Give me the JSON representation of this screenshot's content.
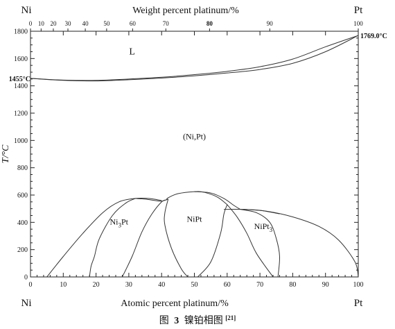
{
  "chart_data": {
    "type": "line",
    "top_axis": {
      "label": "Weight percent platinum/%",
      "ticks": [
        {
          "label": "0",
          "at": 0
        },
        {
          "label": "10",
          "at": 3.24
        },
        {
          "label": "20",
          "at": 6.97
        },
        {
          "label": "30",
          "at": 11.42
        },
        {
          "label": "40",
          "at": 16.72
        },
        {
          "label": "50",
          "at": 23.23
        },
        {
          "label": "60",
          "at": 31.15
        },
        {
          "label": "70",
          "at": 41.29
        },
        {
          "label": "80",
          "at": 54.63
        },
        {
          "label": "90",
          "at": 73.0
        },
        {
          "label": "100",
          "at": 100
        }
      ]
    },
    "xlabel": "Atomic percent platinum/%",
    "ylabel": "T/°C",
    "xlim": [
      0,
      100
    ],
    "ylim": [
      0,
      1800
    ],
    "x_ticks": [
      "0",
      "10",
      "20",
      "30",
      "40",
      "50",
      "60",
      "70",
      "80",
      "90",
      "100"
    ],
    "y_ticks": [
      "0",
      "200",
      "400",
      "600",
      "800",
      "1000",
      "1200",
      "1400",
      "1600",
      "1800"
    ],
    "corner_labels": {
      "left_top": "Ni",
      "right_top": "Pt",
      "left_bottom": "Ni",
      "right_bottom": "Pt"
    },
    "annotations": {
      "ni_melt": {
        "text": "1455°C",
        "x": 0,
        "y": 1455
      },
      "pt_melt": {
        "text": "1769.0°C",
        "x": 100,
        "y": 1769
      }
    },
    "phase_labels": [
      {
        "text": "L",
        "x": 31,
        "y": 1630
      },
      {
        "text": "(Ni,Pt)",
        "x": 50,
        "y": 1010
      },
      {
        "text": "NiPt",
        "x": 50,
        "y": 405
      }
    ],
    "subscript_labels": [
      {
        "base1": "Ni",
        "sub": "3",
        "base2": "Pt",
        "x": 27,
        "y": 385
      },
      {
        "base1": "NiPt",
        "sub": "3",
        "base2": "",
        "x": 71,
        "y": 350
      }
    ],
    "series": [
      {
        "values": [
          [
            0,
            1455
          ],
          [
            10,
            1440
          ],
          [
            20,
            1436
          ],
          [
            30,
            1445
          ],
          [
            40,
            1457
          ],
          [
            50,
            1473
          ],
          [
            60,
            1494
          ],
          [
            70,
            1520
          ],
          [
            80,
            1565
          ],
          [
            90,
            1650
          ],
          [
            100,
            1769
          ]
        ]
      },
      {
        "values": [
          [
            0,
            1455
          ],
          [
            10,
            1442
          ],
          [
            20,
            1440
          ],
          [
            30,
            1450
          ],
          [
            40,
            1463
          ],
          [
            50,
            1482
          ],
          [
            60,
            1506
          ],
          [
            70,
            1540
          ],
          [
            80,
            1596
          ],
          [
            90,
            1686
          ],
          [
            100,
            1769
          ]
        ]
      },
      {
        "values": [
          [
            5,
            0
          ],
          [
            10,
            150
          ],
          [
            16,
            320
          ],
          [
            22,
            470
          ],
          [
            27,
            550
          ],
          [
            32,
            575
          ],
          [
            36,
            575
          ],
          [
            40,
            560
          ]
        ]
      },
      {
        "values": [
          [
            18,
            0
          ],
          [
            18.5,
            80
          ],
          [
            19.5,
            150
          ],
          [
            21,
            280
          ],
          [
            25,
            450
          ],
          [
            29,
            540
          ],
          [
            32,
            575
          ]
        ]
      },
      {
        "values": [
          [
            28,
            0
          ],
          [
            31,
            150
          ],
          [
            34,
            330
          ],
          [
            37,
            460
          ],
          [
            40,
            550
          ],
          [
            41.5,
            565
          ]
        ]
      },
      {
        "values": [
          [
            32,
            575
          ],
          [
            35,
            570
          ],
          [
            38,
            560
          ],
          [
            40,
            555
          ],
          [
            42,
            570
          ]
        ]
      },
      {
        "values": [
          [
            41.5,
            565
          ],
          [
            42,
            580
          ],
          [
            45,
            610
          ],
          [
            50,
            625
          ],
          [
            53,
            620
          ],
          [
            57,
            585
          ],
          [
            60,
            530
          ]
        ]
      },
      {
        "values": [
          [
            48,
            0
          ],
          [
            46,
            60
          ],
          [
            43,
            210
          ],
          [
            41,
            380
          ],
          [
            41,
            470
          ],
          [
            42,
            570
          ]
        ]
      },
      {
        "values": [
          [
            51,
            0
          ],
          [
            55,
            110
          ],
          [
            58,
            320
          ],
          [
            59,
            460
          ],
          [
            60,
            530
          ]
        ]
      },
      {
        "values": [
          [
            50,
            625
          ],
          [
            55,
            615
          ],
          [
            59,
            575
          ],
          [
            62,
            525
          ],
          [
            64,
            495
          ]
        ]
      },
      {
        "values": [
          [
            59,
            495
          ],
          [
            65,
            495
          ],
          [
            70,
            488
          ],
          [
            76,
            462
          ]
        ]
      },
      {
        "values": [
          [
            60,
            530
          ],
          [
            63,
            440
          ],
          [
            66,
            320
          ],
          [
            69,
            170
          ],
          [
            74,
            0
          ]
        ]
      },
      {
        "values": [
          [
            64,
            495
          ],
          [
            69,
            470
          ],
          [
            73,
            400
          ],
          [
            75,
            280
          ],
          [
            76,
            150
          ],
          [
            75.5,
            0
          ]
        ]
      },
      {
        "values": [
          [
            65,
            495
          ],
          [
            72,
            482
          ],
          [
            80,
            440
          ],
          [
            88,
            370
          ],
          [
            94,
            270
          ],
          [
            99,
            110
          ],
          [
            100,
            0
          ]
        ]
      }
    ]
  },
  "caption": {
    "prefix": "图",
    "number": "3",
    "text": "镍铂相图",
    "ref": "[21]"
  }
}
